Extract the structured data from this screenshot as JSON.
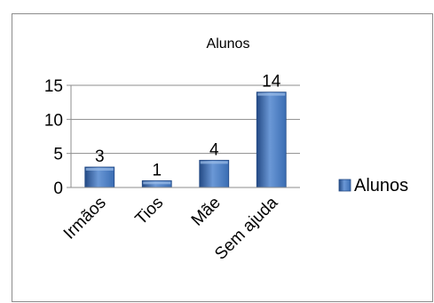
{
  "chart_data": {
    "type": "bar",
    "title": "Alunos",
    "categories": [
      "Irmãos",
      "Tios",
      "Mãe",
      "Sem ajuda"
    ],
    "series": [
      {
        "name": "Alunos",
        "values": [
          3,
          1,
          4,
          14
        ]
      }
    ],
    "ylim": [
      0,
      15
    ],
    "yticks": [
      0,
      5,
      10,
      15
    ],
    "grid": true,
    "legend": "right",
    "bar_color": "#3a6db3",
    "bar_color_light": "#6b98d6",
    "bar_color_dark": "#244a85"
  }
}
